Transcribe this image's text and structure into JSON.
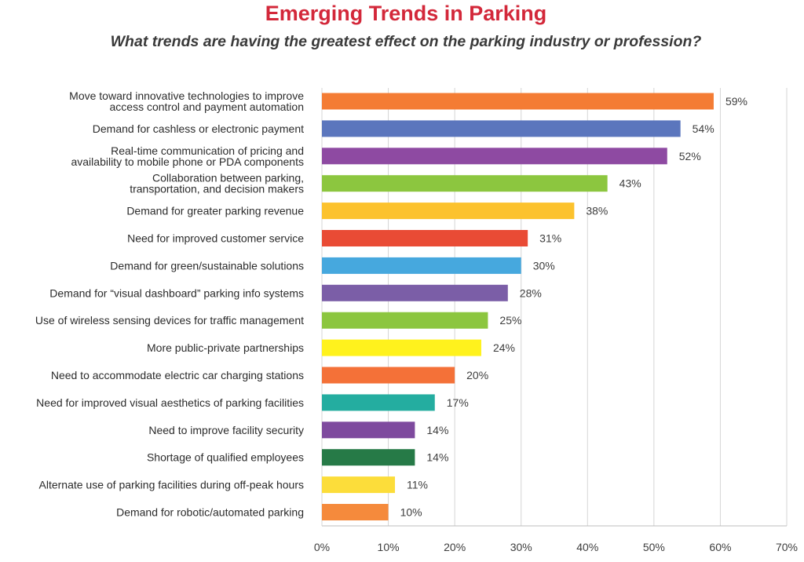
{
  "chart_data": {
    "type": "bar",
    "orientation": "horizontal",
    "title": "Emerging Trends in Parking",
    "subtitle": "What trends are having the greatest effect on the parking industry or profession?",
    "xlim": [
      0,
      70
    ],
    "grid": true,
    "x_ticks": [
      "0%",
      "10%",
      "20%",
      "30%",
      "40%",
      "50%",
      "60%",
      "70%"
    ],
    "categories": [
      [
        "Move toward innovative technologies to improve",
        "access control and payment automation"
      ],
      [
        "Demand for cashless or electronic payment"
      ],
      [
        "Real-time communication of pricing and",
        "availability to mobile phone or PDA components"
      ],
      [
        "Collaboration between parking,",
        "transportation, and decision makers"
      ],
      [
        "Demand for greater parking revenue"
      ],
      [
        "Need for improved customer service"
      ],
      [
        "Demand for green/sustainable solutions"
      ],
      [
        "Demand for “visual dashboard” parking info systems"
      ],
      [
        "Use of wireless sensing devices for traffic management"
      ],
      [
        "More public-private partnerships"
      ],
      [
        "Need to accommodate electric car charging stations"
      ],
      [
        "Need for improved visual aesthetics of parking facilities"
      ],
      [
        "Need to improve facility security"
      ],
      [
        "Shortage of qualified employees"
      ],
      [
        "Alternate use of parking facilities during off-peak hours"
      ],
      [
        "Demand for robotic/automated parking"
      ]
    ],
    "values": [
      59,
      54,
      52,
      43,
      38,
      31,
      30,
      28,
      25,
      24,
      20,
      17,
      14,
      14,
      11,
      10
    ],
    "value_labels": [
      "59%",
      "54%",
      "52%",
      "43%",
      "38%",
      "31%",
      "30%",
      "28%",
      "25%",
      "24%",
      "20%",
      "17%",
      "14%",
      "14%",
      "11%",
      "10%"
    ],
    "colors": [
      "#f47c34",
      "#5b76bd",
      "#8e4aa2",
      "#8cc63f",
      "#fcc22d",
      "#e94b35",
      "#46a8de",
      "#7b5ea7",
      "#8cc63f",
      "#fff21d",
      "#f47138",
      "#24ada0",
      "#7e4a9e",
      "#267a47",
      "#fcdd3a",
      "#f58a3c"
    ]
  }
}
